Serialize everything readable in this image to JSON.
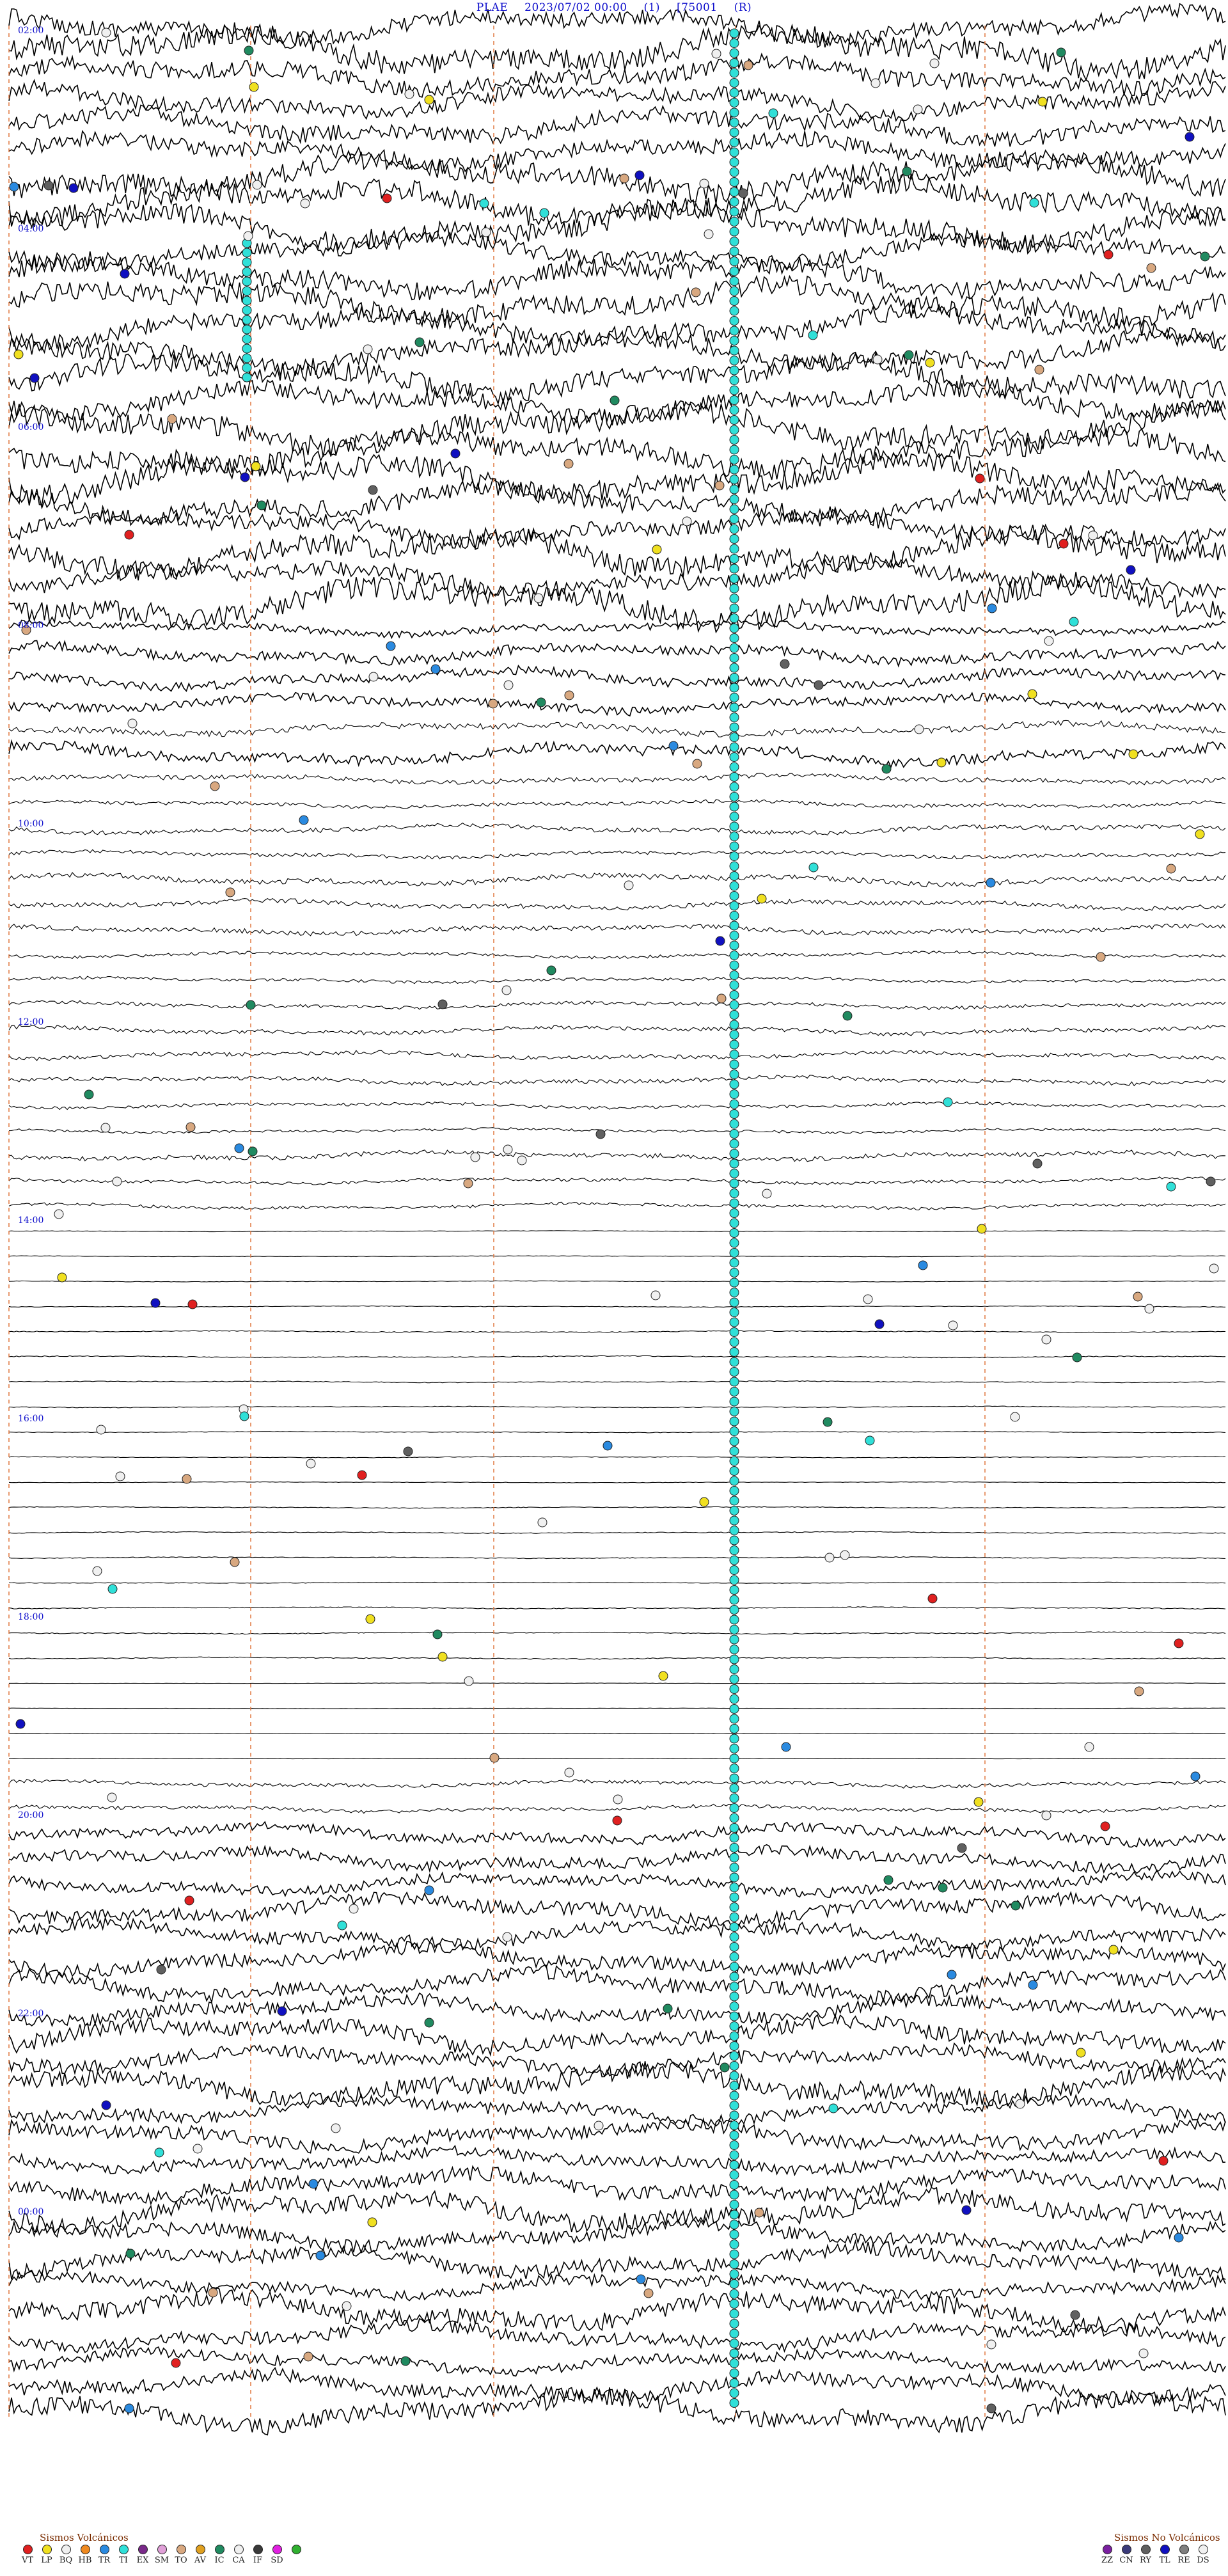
{
  "header": {
    "station": "PLAE",
    "datetime": "2023/07/02 00:00",
    "channel": "(1)",
    "gain": "[75001",
    "mode": "(R)"
  },
  "time_labels": [
    "02:00",
    "04:00",
    "06:00",
    "08:00",
    "10:00",
    "12:00",
    "14:00",
    "16:00",
    "18:00",
    "20:00",
    "22:00",
    "00:00"
  ],
  "legend": {
    "volcanic_title": "Sismos Volcánicos",
    "volcanic": [
      {
        "code": "VT",
        "color": "#e02020"
      },
      {
        "code": "LP",
        "color": "#f0e020"
      },
      {
        "code": "BQ",
        "color": "#f0f0f0"
      },
      {
        "code": "HB",
        "color": "#f08a20"
      },
      {
        "code": "TR",
        "color": "#2a8ae0"
      },
      {
        "code": "TI",
        "color": "#30e0d8"
      },
      {
        "code": "EX",
        "color": "#7a2a8a"
      },
      {
        "code": "SM",
        "color": "#e0a0d8"
      },
      {
        "code": "TO",
        "color": "#d8a880"
      },
      {
        "code": "AV",
        "color": "#e0a020"
      },
      {
        "code": "IC",
        "color": "#208a60"
      },
      {
        "code": "CA",
        "color": "#f0f0f0"
      },
      {
        "code": "IF",
        "color": "#3a3a3a"
      },
      {
        "code": "SD",
        "color": "#e020e0"
      },
      {
        "code": "",
        "color": "#30b030"
      }
    ],
    "non_volcanic_title": "Sismos No Volcánicos",
    "non_volcanic": [
      {
        "code": "ZZ",
        "color": "#7a20a0"
      },
      {
        "code": "CN",
        "color": "#3a3a7a"
      },
      {
        "code": "RY",
        "color": "#606060"
      },
      {
        "code": "TL",
        "color": "#1010c0"
      },
      {
        "code": "RE",
        "color": "#808080"
      },
      {
        "code": "DS",
        "color": "#f0f0f0"
      }
    ]
  },
  "colors": {
    "trace": "#000000",
    "timeline": "#e07840",
    "label": "#1010cc",
    "ti_marker": "#30e0d8"
  }
}
